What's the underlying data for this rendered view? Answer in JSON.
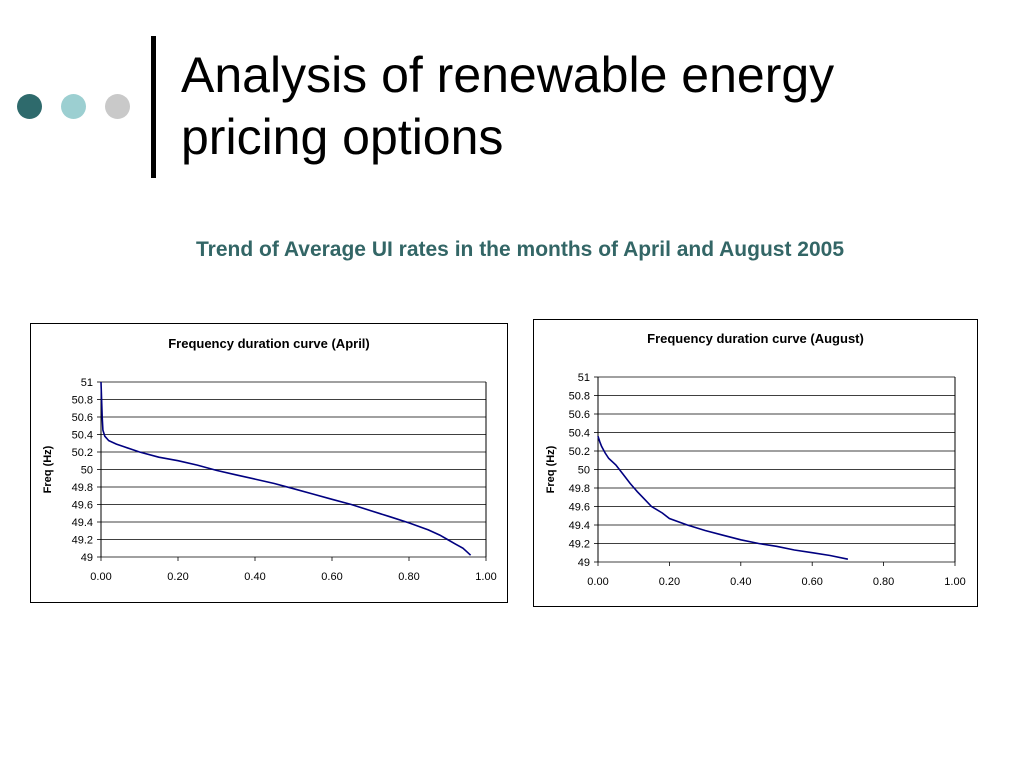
{
  "slide": {
    "title": "Analysis of renewable energy pricing options",
    "subtitle": "Trend of Average UI rates in the months of April and August 2005"
  },
  "colors": {
    "dot_dark": "#2e6a6c",
    "dot_mid": "#9ccfd1",
    "dot_light": "#c9c9c9",
    "subtitle": "#336666",
    "series_line": "#000080",
    "gridline": "#000000"
  },
  "chart_data": [
    {
      "type": "line",
      "title": "Frequency duration curve (April)",
      "xlabel": "",
      "ylabel": "Freq (Hz)",
      "xlim": [
        0,
        1
      ],
      "ylim": [
        49,
        51
      ],
      "xticks": [
        "0.00",
        "0.20",
        "0.40",
        "0.60",
        "0.80",
        "1.00"
      ],
      "yticks": [
        "49",
        "49.2",
        "49.4",
        "49.6",
        "49.8",
        "50",
        "50.2",
        "50.4",
        "50.6",
        "50.8",
        "51"
      ],
      "grid": "horizontal",
      "legend": "none",
      "series": [
        {
          "x": [
            0.0,
            0.003,
            0.005,
            0.01,
            0.02,
            0.04,
            0.06,
            0.08,
            0.1,
            0.15,
            0.2,
            0.25,
            0.3,
            0.35,
            0.4,
            0.45,
            0.5,
            0.55,
            0.6,
            0.65,
            0.7,
            0.75,
            0.8,
            0.85,
            0.88,
            0.9,
            0.92,
            0.94,
            0.95,
            0.96
          ],
          "y": [
            51.0,
            50.6,
            50.45,
            50.38,
            50.33,
            50.29,
            50.26,
            50.23,
            50.2,
            50.14,
            50.1,
            50.05,
            49.99,
            49.94,
            49.89,
            49.84,
            49.78,
            49.72,
            49.66,
            49.6,
            49.53,
            49.46,
            49.39,
            49.31,
            49.25,
            49.2,
            49.15,
            49.1,
            49.06,
            49.02
          ]
        }
      ]
    },
    {
      "type": "line",
      "title": "Frequency duration curve (August)",
      "xlabel": "",
      "ylabel": "Freq (Hz)",
      "xlim": [
        0,
        1
      ],
      "ylim": [
        49,
        51
      ],
      "xticks": [
        "0.00",
        "0.20",
        "0.40",
        "0.60",
        "0.80",
        "1.00"
      ],
      "yticks": [
        "49",
        "49.2",
        "49.4",
        "49.6",
        "49.8",
        "50",
        "50.2",
        "50.4",
        "50.6",
        "50.8",
        "51"
      ],
      "grid": "horizontal",
      "legend": "none",
      "series": [
        {
          "x": [
            0.0,
            0.005,
            0.01,
            0.02,
            0.03,
            0.05,
            0.07,
            0.09,
            0.11,
            0.13,
            0.15,
            0.18,
            0.2,
            0.25,
            0.3,
            0.35,
            0.4,
            0.45,
            0.5,
            0.55,
            0.6,
            0.65,
            0.7
          ],
          "y": [
            50.36,
            50.3,
            50.25,
            50.18,
            50.12,
            50.05,
            49.95,
            49.85,
            49.76,
            49.68,
            49.6,
            49.53,
            49.47,
            49.4,
            49.34,
            49.29,
            49.24,
            49.2,
            49.17,
            49.13,
            49.1,
            49.07,
            49.03
          ]
        }
      ]
    }
  ]
}
